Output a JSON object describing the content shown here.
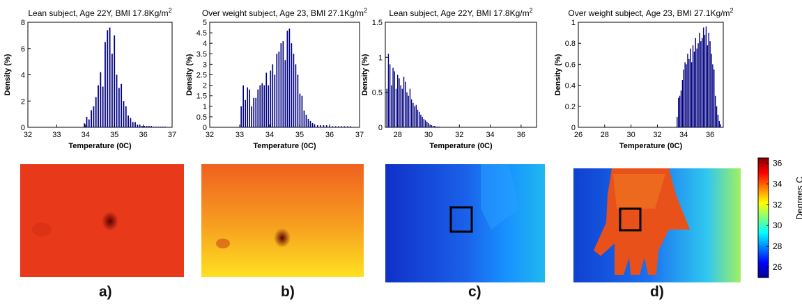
{
  "chart_data": [
    {
      "type": "bar",
      "title": "Lean subject, Age 22Y, BMI 17.8Kg/m",
      "title_sup": "2",
      "xlabel": "Temperature (0C)",
      "ylabel": "Density (%)",
      "xlim": [
        32,
        37
      ],
      "ylim": [
        0,
        8
      ],
      "xticks": [
        "32",
        "33",
        "34",
        "35",
        "36",
        "37"
      ],
      "yticks": [
        "0",
        "2",
        "4",
        "6",
        "8"
      ],
      "x": [
        33.96,
        34.04,
        34.12,
        34.2,
        34.28,
        34.36,
        34.44,
        34.52,
        34.6,
        34.68,
        34.76,
        34.84,
        34.92,
        35.0,
        35.08,
        35.16,
        35.24,
        35.32,
        35.4,
        35.48,
        35.56,
        35.64,
        35.72,
        35.8,
        35.88,
        35.96,
        36.04,
        36.12,
        36.2,
        36.28,
        36.36,
        36.44,
        36.52,
        36.6,
        36.68,
        36.76
      ],
      "values": [
        0.3,
        0.8,
        0.6,
        1.3,
        1.6,
        2.3,
        3.2,
        4.2,
        3.1,
        6.5,
        7.4,
        7.6,
        5.6,
        7.0,
        4.0,
        3.0,
        3.3,
        2.0,
        1.6,
        0.9,
        0.7,
        0.4,
        0.4,
        0.2,
        0.2,
        0.1,
        0.1,
        0.1,
        0.1,
        0.1,
        0.05,
        0.05,
        0.05,
        0.05,
        0.05,
        0.05
      ]
    },
    {
      "type": "bar",
      "title": "Over weight subject, Age 23, BMI 27.1Kg/m",
      "title_sup": "2",
      "xlabel": "Temperature (0C)",
      "ylabel": "Density (%)",
      "xlim": [
        32,
        37
      ],
      "ylim": [
        0,
        5
      ],
      "xticks": [
        "32",
        "33",
        "34",
        "35",
        "36",
        "37"
      ],
      "yticks": [
        "0",
        "0.5",
        "1",
        "1.5",
        "2",
        "2.5",
        "3",
        "3.5",
        "4",
        "4.5",
        "5"
      ],
      "x": [
        33.05,
        33.12,
        33.19,
        33.26,
        33.33,
        33.4,
        33.47,
        33.54,
        33.61,
        33.68,
        33.75,
        33.82,
        33.89,
        33.96,
        34.03,
        34.1,
        34.17,
        34.24,
        34.31,
        34.38,
        34.45,
        34.52,
        34.59,
        34.66,
        34.73,
        34.8,
        34.87,
        34.94,
        35.01,
        35.08,
        35.15,
        35.22,
        35.29,
        35.36,
        35.43,
        35.5,
        35.6,
        35.7,
        35.8,
        35.9,
        36.0,
        36.1,
        36.2,
        36.3,
        36.4,
        36.5,
        36.6,
        36.7
      ],
      "values": [
        1.0,
        2.0,
        1.3,
        1.9,
        1.8,
        1.0,
        1.4,
        1.4,
        1.8,
        2.0,
        2.1,
        2.0,
        2.6,
        2.0,
        2.7,
        3.0,
        2.5,
        3.5,
        3.6,
        4.0,
        4.1,
        3.2,
        4.6,
        4.7,
        4.0,
        3.5,
        3.0,
        2.5,
        1.6,
        1.5,
        0.8,
        0.6,
        0.4,
        0.3,
        0.2,
        0.15,
        0.1,
        0.1,
        0.1,
        0.1,
        0.05,
        0.05,
        0.05,
        0.05,
        0.05,
        0.05,
        0.05,
        0.05
      ]
    },
    {
      "type": "bar",
      "title": "Lean subject, Age 22Y, BMI 17.8Kg/m",
      "title_sup": "2",
      "xlabel": "Temperature (0C)",
      "ylabel": "Density (%)",
      "xlim": [
        27.2,
        37
      ],
      "ylim": [
        0,
        1.5
      ],
      "xticks": [
        "28",
        "30",
        "32",
        "34",
        "36"
      ],
      "yticks": [
        "0",
        "0.5",
        "1",
        "1.5"
      ],
      "x": [
        27.3,
        27.4,
        27.5,
        27.6,
        27.7,
        27.8,
        27.9,
        28.0,
        28.1,
        28.2,
        28.3,
        28.4,
        28.5,
        28.6,
        28.7,
        28.8,
        28.9,
        29.0,
        29.1,
        29.2,
        29.3,
        29.4,
        29.5,
        29.6,
        29.7,
        29.8,
        29.9,
        30.0,
        30.1,
        30.2,
        30.3,
        30.4,
        30.5,
        30.6,
        30.7
      ],
      "values": [
        0.55,
        1.05,
        0.9,
        0.6,
        0.85,
        0.8,
        0.55,
        0.75,
        0.7,
        0.6,
        0.55,
        0.72,
        0.65,
        0.5,
        0.45,
        0.55,
        0.4,
        0.35,
        0.3,
        0.32,
        0.25,
        0.22,
        0.18,
        0.15,
        0.12,
        0.1,
        0.08,
        0.06,
        0.04,
        0.03,
        0.02,
        0.02,
        0.01,
        0.01,
        0.01
      ]
    },
    {
      "type": "bar",
      "title": "Over weight subject, Age 23, BMI 27.1Kg/m",
      "title_sup": "2",
      "xlabel": "Temperature (0C)",
      "ylabel": "Density (%)",
      "xlim": [
        26,
        37
      ],
      "ylim": [
        0,
        1
      ],
      "xticks": [
        "26",
        "28",
        "30",
        "32",
        "34",
        "36"
      ],
      "yticks": [
        "0",
        "0.2",
        "0.4",
        "0.6",
        "0.8",
        "1"
      ],
      "x": [
        33.5,
        33.6,
        33.7,
        33.8,
        33.9,
        34.0,
        34.1,
        34.2,
        34.3,
        34.4,
        34.5,
        34.6,
        34.7,
        34.8,
        34.9,
        35.0,
        35.1,
        35.2,
        35.3,
        35.4,
        35.5,
        35.6,
        35.7,
        35.8,
        35.9,
        36.0,
        36.1,
        36.2,
        36.3,
        36.4,
        36.5,
        36.6,
        36.7,
        36.8
      ],
      "values": [
        0.1,
        0.28,
        0.3,
        0.35,
        0.45,
        0.55,
        0.62,
        0.6,
        0.7,
        0.65,
        0.75,
        0.62,
        0.78,
        0.72,
        0.85,
        0.75,
        0.8,
        0.9,
        0.82,
        0.85,
        0.95,
        0.88,
        0.96,
        0.78,
        0.9,
        0.82,
        0.7,
        0.6,
        0.55,
        0.3,
        0.2,
        0.12,
        0.06,
        0.03
      ]
    }
  ],
  "colorbar": {
    "ticks": [
      "26",
      "28",
      "30",
      "32",
      "34",
      "36"
    ],
    "range": [
      25,
      36.5
    ],
    "label": "Degrees C"
  },
  "panel_labels": [
    "a)",
    "b)",
    "c)",
    "d)"
  ],
  "colors": {
    "bar": "#000080",
    "axis": "#000000"
  }
}
